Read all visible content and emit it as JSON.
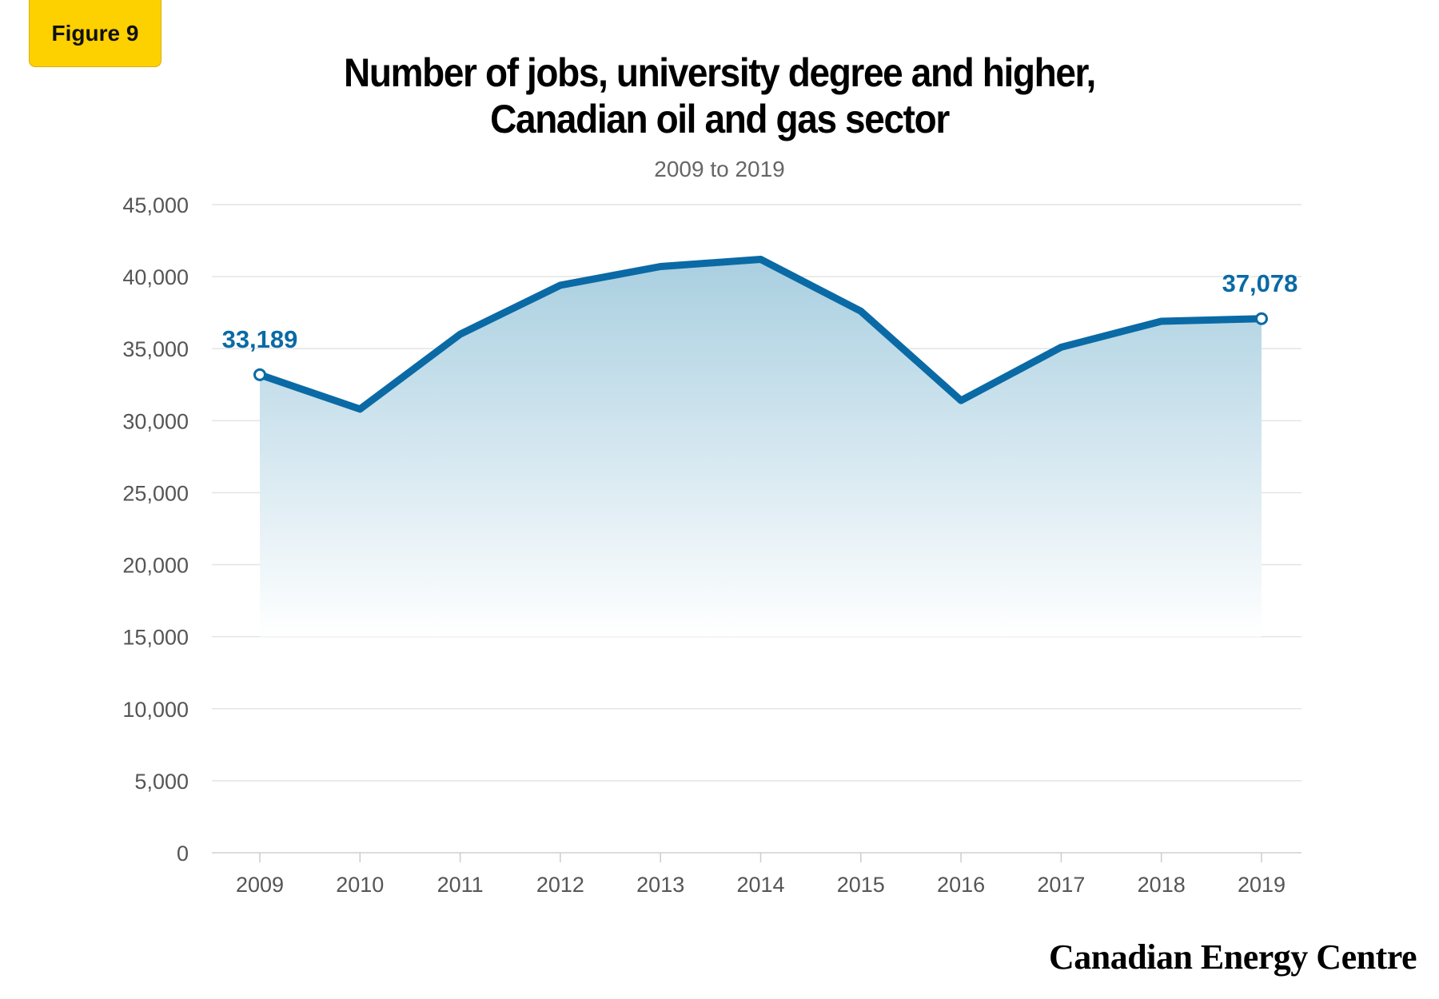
{
  "badge": "Figure 9",
  "title_line1": "Number of jobs, university degree and higher,",
  "title_line2": "Canadian oil and gas sector",
  "subtitle": "2009 to 2019",
  "brand": "Canadian Energy Centre",
  "colors": {
    "line": "#0a6aa5",
    "badge": "#fdd000",
    "area_top": "#a9cfe0"
  },
  "chart_data": {
    "type": "area",
    "x": [
      "2009",
      "2010",
      "2011",
      "2012",
      "2013",
      "2014",
      "2015",
      "2016",
      "2017",
      "2018",
      "2019"
    ],
    "series": [
      {
        "values": [
          33189,
          30800,
          36000,
          39400,
          40700,
          41200,
          37600,
          31400,
          35100,
          36900,
          37078
        ]
      }
    ],
    "ylim": [
      0,
      45000
    ],
    "yticks": [
      0,
      5000,
      10000,
      15000,
      20000,
      25000,
      30000,
      35000,
      40000,
      45000
    ],
    "ytick_labels": [
      "0",
      "5,000",
      "10,000",
      "15,000",
      "20,000",
      "25,000",
      "30,000",
      "35,000",
      "40,000",
      "45,000"
    ],
    "data_labels": [
      {
        "index": 0,
        "text": "33,189"
      },
      {
        "index": 10,
        "text": "37,078"
      }
    ],
    "grid": true,
    "legend": "none"
  }
}
